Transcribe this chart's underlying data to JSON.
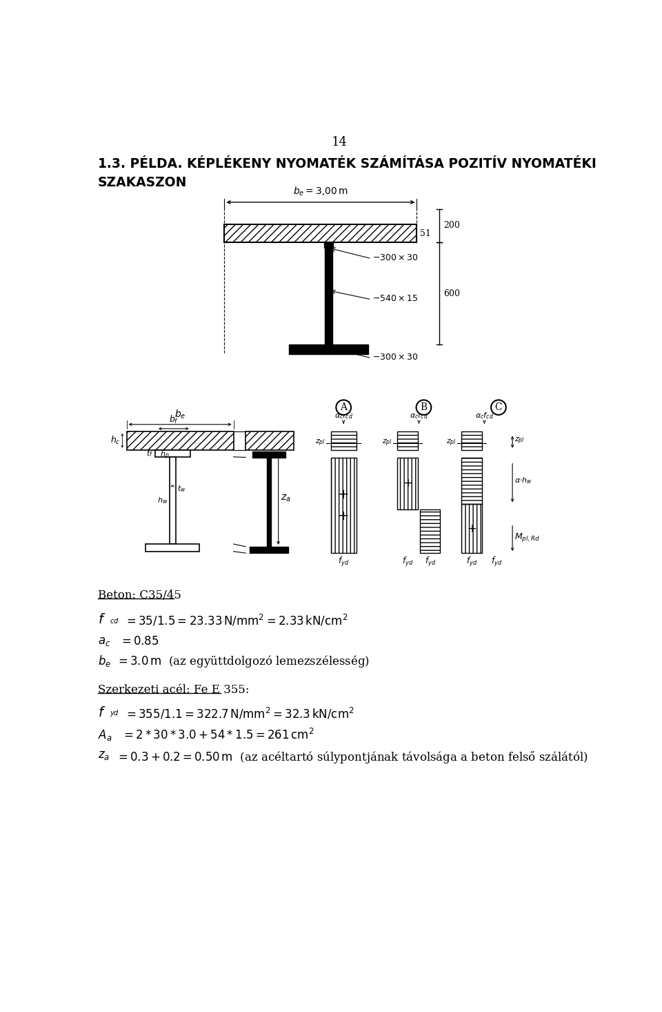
{
  "page_number": "14",
  "title_line1": "1.3. PÉLDA. KÉPLÉKENY NYOMATÉK SZÁMÍTÁSA POZITÍV NYOMATÉKI",
  "title_line2": "SZAKASZON",
  "bg_color": "#ffffff",
  "text_color": "#000000",
  "beton_header": "Beton: C35/45",
  "szerkezeti_header": "Szerkezeti acél: Fe E 355:",
  "dim_51": "51",
  "dim_200": "200",
  "dim_600": "600",
  "label_300x30_top": "$-300 \\times 30$",
  "label_540x15": "$-540 \\times 15$",
  "label_300x30_bot": "$-300 \\times 30$",
  "circ_A": "A",
  "circ_B": "B",
  "circ_C": "C",
  "fcd_formula": "$= 35 / 1.5 =23.33\\,\\mathrm{N/mm^2} = 2.33\\,\\mathrm{kN/cm^2}$",
  "ac_formula": "$= 0.85$",
  "be_formula": "$= 3.0\\,\\mathrm{m}$",
  "be_note": "  (az együttdolgozó lemezszélesség)",
  "fyd_formula": "$= 355 / 1.1 = 322.7\\,\\mathrm{N/mm^2} = 32.3\\,\\mathrm{kN/cm^2}$",
  "Aa_formula": "$= 2 * 30 * 3.0 + 54 * 1.5 = 261\\,\\mathrm{cm^2}$",
  "za_formula": "$= 0.3 + 0.2 = 0.50\\,\\mathrm{m}$",
  "za_note": "  (az acéltartó súlypontjának távolsága a beton felső szálától)"
}
